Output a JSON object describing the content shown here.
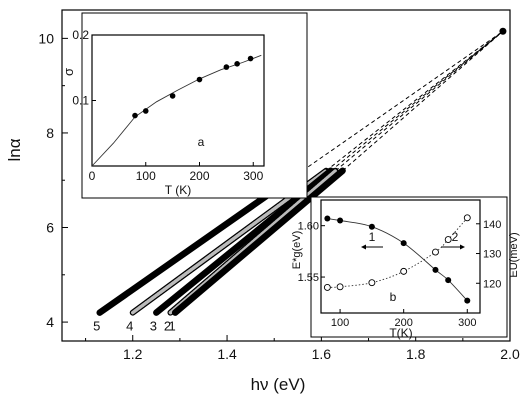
{
  "chart_data": [
    {
      "type": "line",
      "xlabel": "hν (eV)",
      "ylabel": "lnα",
      "xlim": [
        1.05,
        2.0
      ],
      "ylim": [
        3.6,
        10.6
      ],
      "xticks": [
        1.2,
        1.4,
        1.6,
        1.8,
        2.0
      ],
      "xtick_labels": [
        "1.2",
        "1.4",
        "1.6",
        "1.8",
        "2.0"
      ],
      "yticks": [
        4,
        6,
        8,
        10
      ],
      "ytick_labels": [
        "4",
        "6",
        "8",
        "10"
      ],
      "convergence_point": {
        "x": 1.985,
        "y": 10.15
      },
      "series": [
        {
          "name": "5",
          "style": "filled",
          "start": [
            1.13,
            4.2
          ],
          "end": [
            1.56,
            7.2
          ]
        },
        {
          "name": "4",
          "style": "open",
          "start": [
            1.2,
            4.2
          ],
          "end": [
            1.61,
            7.2
          ]
        },
        {
          "name": "3",
          "style": "filled",
          "start": [
            1.25,
            4.2
          ],
          "end": [
            1.62,
            7.2
          ]
        },
        {
          "name": "2",
          "style": "open",
          "start": [
            1.28,
            4.2
          ],
          "end": [
            1.63,
            7.2
          ]
        },
        {
          "name": "1",
          "style": "filled",
          "start": [
            1.29,
            4.2
          ],
          "end": [
            1.645,
            7.2
          ]
        }
      ]
    },
    {
      "type": "scatter",
      "inset_label": "a",
      "xlabel": "T (K)",
      "ylabel": "σ",
      "xlim": [
        0,
        320
      ],
      "ylim": [
        0,
        0.2
      ],
      "xticks": [
        0,
        100,
        200,
        300
      ],
      "xtick_labels": [
        "0",
        "100",
        "200",
        "300"
      ],
      "yticks": [
        0.1,
        0.2
      ],
      "ytick_labels": [
        "0.1",
        "0.2"
      ],
      "points": [
        [
          80,
          0.077
        ],
        [
          100,
          0.084
        ],
        [
          150,
          0.107
        ],
        [
          200,
          0.132
        ],
        [
          250,
          0.151
        ],
        [
          270,
          0.156
        ],
        [
          295,
          0.164
        ]
      ],
      "fit_curve": [
        [
          0,
          0
        ],
        [
          40,
          0.035
        ],
        [
          80,
          0.075
        ],
        [
          120,
          0.098
        ],
        [
          160,
          0.116
        ],
        [
          200,
          0.133
        ],
        [
          240,
          0.147
        ],
        [
          280,
          0.158
        ],
        [
          315,
          0.169
        ]
      ]
    },
    {
      "type": "scatter",
      "inset_label": "b",
      "xlabel": "T(K)",
      "ylabel": "E*g(eV)",
      "ylabel2": "EU(meV)",
      "xlim": [
        70,
        320
      ],
      "ylim": [
        1.515,
        1.625
      ],
      "ylim2": [
        110,
        148
      ],
      "xticks": [
        100,
        200,
        300
      ],
      "xtick_labels": [
        "100",
        "200",
        "300"
      ],
      "yticks": [
        1.55,
        1.6
      ],
      "ytick_labels": [
        "1.55",
        "1.60"
      ],
      "yticks2": [
        120,
        130,
        140
      ],
      "ytick_labels2": [
        "120",
        "130",
        "140"
      ],
      "series": [
        {
          "name": "1",
          "style": "filled",
          "axis": "left",
          "points": [
            [
              80,
              1.607
            ],
            [
              100,
              1.605
            ],
            [
              150,
              1.599
            ],
            [
              200,
              1.583
            ],
            [
              250,
              1.557
            ],
            [
              270,
              1.547
            ],
            [
              300,
              1.527
            ]
          ]
        },
        {
          "name": "2",
          "style": "open",
          "axis": "right",
          "points": [
            [
              80,
              118.6
            ],
            [
              100,
              118.8
            ],
            [
              150,
              120.2
            ],
            [
              200,
              124.0
            ],
            [
              250,
              130.5
            ],
            [
              270,
              134.7
            ],
            [
              300,
              142.0
            ]
          ]
        }
      ]
    }
  ]
}
